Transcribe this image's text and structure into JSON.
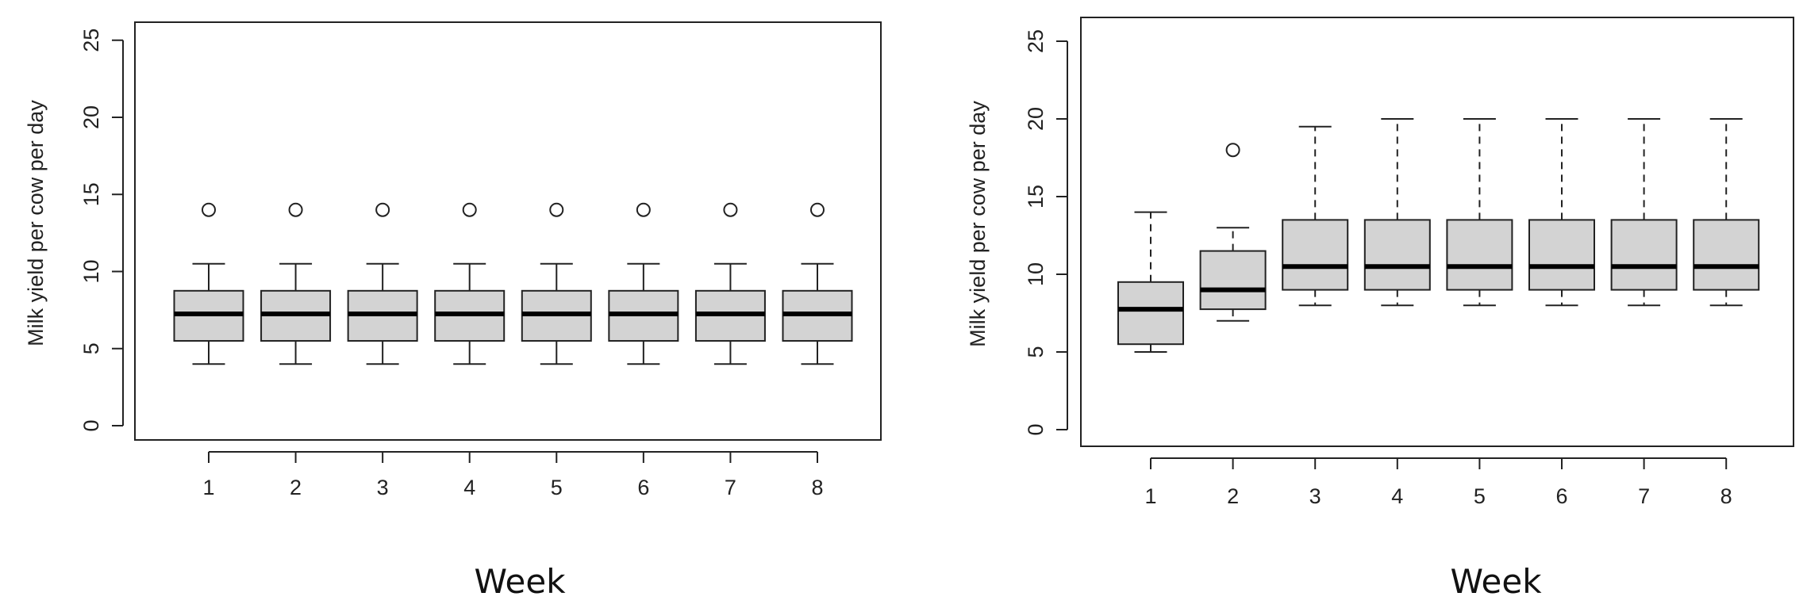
{
  "chart_data": [
    {
      "type": "boxplot",
      "title": "",
      "xlabel": "Week",
      "ylabel": "Milk yield per cow per day",
      "ylim": [
        0,
        25
      ],
      "yticks": [
        0,
        5,
        10,
        15,
        20,
        25
      ],
      "categories": [
        "1",
        "2",
        "3",
        "4",
        "5",
        "6",
        "7",
        "8"
      ],
      "whisker_style": "solid",
      "box_fill": "#d3d3d3",
      "grid": false,
      "boxes": [
        {
          "label": "1",
          "min": 4,
          "q1": 5.5,
          "median": 7.25,
          "q3": 8.75,
          "max": 10.5,
          "outliers": [
            14
          ]
        },
        {
          "label": "2",
          "min": 4,
          "q1": 5.5,
          "median": 7.25,
          "q3": 8.75,
          "max": 10.5,
          "outliers": [
            14
          ]
        },
        {
          "label": "3",
          "min": 4,
          "q1": 5.5,
          "median": 7.25,
          "q3": 8.75,
          "max": 10.5,
          "outliers": [
            14
          ]
        },
        {
          "label": "4",
          "min": 4,
          "q1": 5.5,
          "median": 7.25,
          "q3": 8.75,
          "max": 10.5,
          "outliers": [
            14
          ]
        },
        {
          "label": "5",
          "min": 4,
          "q1": 5.5,
          "median": 7.25,
          "q3": 8.75,
          "max": 10.5,
          "outliers": [
            14
          ]
        },
        {
          "label": "6",
          "min": 4,
          "q1": 5.5,
          "median": 7.25,
          "q3": 8.75,
          "max": 10.5,
          "outliers": [
            14
          ]
        },
        {
          "label": "7",
          "min": 4,
          "q1": 5.5,
          "median": 7.25,
          "q3": 8.75,
          "max": 10.5,
          "outliers": [
            14
          ]
        },
        {
          "label": "8",
          "min": 4,
          "q1": 5.5,
          "median": 7.25,
          "q3": 8.75,
          "max": 10.5,
          "outliers": [
            14
          ]
        }
      ]
    },
    {
      "type": "boxplot",
      "title": "",
      "xlabel": "Week",
      "ylabel": "Milk yield per cow per day",
      "ylim": [
        0,
        25
      ],
      "yticks": [
        0,
        5,
        10,
        15,
        20,
        25
      ],
      "categories": [
        "1",
        "2",
        "3",
        "4",
        "5",
        "6",
        "7",
        "8"
      ],
      "whisker_style": "dashed",
      "box_fill": "#d3d3d3",
      "grid": false,
      "boxes": [
        {
          "label": "1",
          "min": 5,
          "q1": 5.5,
          "median": 7.75,
          "q3": 9.5,
          "max": 14,
          "outliers": []
        },
        {
          "label": "2",
          "min": 7,
          "q1": 7.75,
          "median": 9,
          "q3": 11.5,
          "max": 13,
          "outliers": [
            18
          ]
        },
        {
          "label": "3",
          "min": 8,
          "q1": 9,
          "median": 10.5,
          "q3": 13.5,
          "max": 19.5,
          "outliers": []
        },
        {
          "label": "4",
          "min": 8,
          "q1": 9,
          "median": 10.5,
          "q3": 13.5,
          "max": 20,
          "outliers": []
        },
        {
          "label": "5",
          "min": 8,
          "q1": 9,
          "median": 10.5,
          "q3": 13.5,
          "max": 20,
          "outliers": []
        },
        {
          "label": "6",
          "min": 8,
          "q1": 9,
          "median": 10.5,
          "q3": 13.5,
          "max": 20,
          "outliers": []
        },
        {
          "label": "7",
          "min": 8,
          "q1": 9,
          "median": 10.5,
          "q3": 13.5,
          "max": 20,
          "outliers": []
        },
        {
          "label": "8",
          "min": 8,
          "q1": 9,
          "median": 10.5,
          "q3": 13.5,
          "max": 20,
          "outliers": []
        }
      ]
    }
  ]
}
